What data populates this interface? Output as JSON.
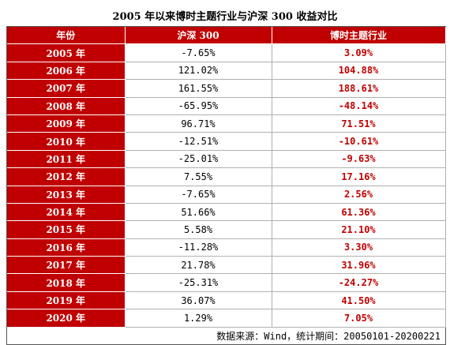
{
  "title": "2005 年以来博时主题行业与沪深 300 收益对比",
  "colors": {
    "header_bg": "#c00000",
    "header_text": "#ffffff",
    "theme_text": "#c00000"
  },
  "chart_data": {
    "type": "table",
    "columns": [
      "年份",
      "沪深 300",
      "博时主题行业"
    ],
    "rows": [
      [
        "2005 年",
        "-7.65%",
        "3.09%"
      ],
      [
        "2006 年",
        "121.02%",
        "104.88%"
      ],
      [
        "2007 年",
        "161.55%",
        "188.61%"
      ],
      [
        "2008 年",
        "-65.95%",
        "-48.14%"
      ],
      [
        "2009 年",
        "96.71%",
        "71.51%"
      ],
      [
        "2010 年",
        "-12.51%",
        "-10.61%"
      ],
      [
        "2011 年",
        "-25.01%",
        "-9.63%"
      ],
      [
        "2012 年",
        "7.55%",
        "17.16%"
      ],
      [
        "2013 年",
        "-7.65%",
        "2.56%"
      ],
      [
        "2014 年",
        "51.66%",
        "61.36%"
      ],
      [
        "2015 年",
        "5.58%",
        "21.10%"
      ],
      [
        "2016 年",
        "-11.28%",
        "3.30%"
      ],
      [
        "2017 年",
        "21.78%",
        "31.96%"
      ],
      [
        "2018 年",
        "-25.31%",
        "-24.27%"
      ],
      [
        "2019 年",
        "36.07%",
        "41.50%"
      ],
      [
        "2020 年",
        "1.29%",
        "7.05%"
      ]
    ]
  },
  "source_note": "数据来源：Wind，统计期间：20050101-20200221"
}
